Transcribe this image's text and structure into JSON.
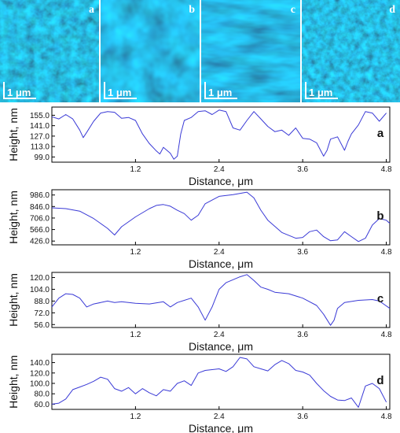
{
  "images": [
    {
      "letter": "a",
      "scale_label": "1 μm"
    },
    {
      "letter": "b",
      "scale_label": "1 μm"
    },
    {
      "letter": "c",
      "scale_label": "1 μm"
    },
    {
      "letter": "d",
      "scale_label": "1 μm"
    }
  ],
  "colors": {
    "line": "#3a3ad6",
    "axis": "#000000",
    "image_base": "#0e6fa0",
    "image_light": "#29c3f0",
    "image_dark": "#031a2a"
  },
  "chart_data": [
    {
      "type": "line",
      "panel_label": "a",
      "xlabel": "Distance, μm",
      "ylabel": "Height, nm",
      "xlim": [
        0,
        4.85
      ],
      "ylim": [
        92,
        166
      ],
      "xticks": [
        "1.2",
        "2.4",
        "3.6",
        "4.8"
      ],
      "xtick_values": [
        1.2,
        2.4,
        3.6,
        4.8
      ],
      "yticks": [
        "155.0",
        "141.0",
        "127.0",
        "113.0",
        "99.0"
      ],
      "ytick_values": [
        155,
        141,
        127,
        113,
        99
      ],
      "series": [
        {
          "x": [
            0,
            0.1,
            0.2,
            0.3,
            0.4,
            0.45,
            0.5,
            0.6,
            0.7,
            0.8,
            0.9,
            1.0,
            1.1,
            1.2,
            1.3,
            1.4,
            1.5,
            1.55,
            1.6,
            1.7,
            1.75,
            1.8,
            1.85,
            1.9,
            2.0,
            2.1,
            2.2,
            2.3,
            2.4,
            2.5,
            2.6,
            2.7,
            2.8,
            2.9,
            3.0,
            3.1,
            3.2,
            3.3,
            3.4,
            3.5,
            3.6,
            3.7,
            3.8,
            3.9,
            3.95,
            4.0,
            4.1,
            4.2,
            4.25,
            4.3,
            4.4,
            4.5,
            4.6,
            4.7,
            4.8
          ],
          "y": [
            153,
            150,
            156,
            150,
            135,
            125,
            132,
            147,
            158,
            160,
            159,
            151,
            152,
            148,
            130,
            117,
            107,
            103,
            112,
            104,
            96,
            100,
            130,
            148,
            152,
            160,
            161,
            156,
            162,
            160,
            138,
            135,
            148,
            160,
            150,
            140,
            133,
            135,
            128,
            138,
            124,
            123,
            118,
            100,
            108,
            123,
            126,
            108,
            120,
            130,
            142,
            160,
            158,
            147,
            158
          ]
        }
      ]
    },
    {
      "type": "line",
      "panel_label": "b",
      "xlabel": "Distance, μm",
      "ylabel": "Height, nm",
      "xlim": [
        0,
        4.85
      ],
      "ylim": [
        380,
        1050
      ],
      "xticks": [
        "1.2",
        "2.4",
        "3.6",
        "4.8"
      ],
      "xtick_values": [
        1.2,
        2.4,
        3.6,
        4.8
      ],
      "yticks": [
        "986.0",
        "846.0",
        "706.0",
        "566.0",
        "426.0"
      ],
      "ytick_values": [
        986,
        846,
        706,
        566,
        426
      ],
      "series": [
        {
          "x": [
            0,
            0.2,
            0.4,
            0.6,
            0.8,
            0.9,
            1.0,
            1.2,
            1.4,
            1.5,
            1.6,
            1.7,
            1.8,
            1.9,
            2.0,
            2.1,
            2.2,
            2.4,
            2.6,
            2.8,
            2.9,
            3.0,
            3.1,
            3.3,
            3.5,
            3.6,
            3.7,
            3.8,
            3.9,
            4.0,
            4.1,
            4.2,
            4.3,
            4.4,
            4.5,
            4.6,
            4.7,
            4.8,
            4.85
          ],
          "y": [
            830,
            820,
            790,
            700,
            580,
            500,
            600,
            720,
            820,
            860,
            870,
            850,
            800,
            760,
            680,
            740,
            880,
            970,
            990,
            1020,
            950,
            800,
            680,
            530,
            460,
            470,
            540,
            560,
            480,
            430,
            440,
            540,
            480,
            420,
            460,
            620,
            700,
            680,
            640
          ]
        }
      ]
    },
    {
      "type": "line",
      "panel_label": "c",
      "xlabel": "Distance, μm",
      "ylabel": "Height, nm",
      "xlim": [
        0,
        4.85
      ],
      "ylim": [
        52,
        127
      ],
      "xticks": [
        "1.2",
        "2.4",
        "3.6",
        "4.8"
      ],
      "xtick_values": [
        1.2,
        2.4,
        3.6,
        4.8
      ],
      "yticks": [
        "120.0",
        "104.0",
        "88.0",
        "72.0",
        "56.0"
      ],
      "ytick_values": [
        120,
        104,
        88,
        72,
        56
      ],
      "series": [
        {
          "x": [
            0,
            0.1,
            0.2,
            0.3,
            0.4,
            0.5,
            0.6,
            0.7,
            0.8,
            0.9,
            1.0,
            1.2,
            1.4,
            1.6,
            1.7,
            1.8,
            2.0,
            2.1,
            2.2,
            2.3,
            2.4,
            2.5,
            2.6,
            2.7,
            2.8,
            2.9,
            3.0,
            3.1,
            3.2,
            3.4,
            3.6,
            3.8,
            3.9,
            4.0,
            4.05,
            4.1,
            4.2,
            4.4,
            4.6,
            4.7,
            4.85
          ],
          "y": [
            80,
            92,
            98,
            97,
            92,
            80,
            84,
            86,
            88,
            86,
            87,
            85,
            84,
            87,
            80,
            86,
            92,
            80,
            62,
            80,
            104,
            113,
            117,
            121,
            124,
            116,
            107,
            104,
            100,
            98,
            92,
            82,
            70,
            55,
            62,
            78,
            86,
            89,
            90,
            88,
            78
          ]
        }
      ]
    },
    {
      "type": "line",
      "panel_label": "d",
      "xlabel": "Distance, μm",
      "ylabel": "Height, nm",
      "xlim": [
        0,
        4.85
      ],
      "ylim": [
        50,
        156
      ],
      "xticks": [
        "1.2",
        "2.4",
        "3.6",
        "4.8"
      ],
      "xtick_values": [
        1.2,
        2.4,
        3.6,
        4.8
      ],
      "yticks": [
        "140.0",
        "120.0",
        "100.0",
        "80.0",
        "60.0"
      ],
      "ytick_values": [
        140,
        120,
        100,
        80,
        60
      ],
      "series": [
        {
          "x": [
            0,
            0.1,
            0.2,
            0.3,
            0.4,
            0.5,
            0.6,
            0.7,
            0.8,
            0.9,
            1.0,
            1.1,
            1.2,
            1.3,
            1.4,
            1.5,
            1.6,
            1.7,
            1.8,
            1.9,
            2.0,
            2.1,
            2.2,
            2.4,
            2.5,
            2.6,
            2.7,
            2.8,
            2.9,
            3.0,
            3.1,
            3.2,
            3.3,
            3.4,
            3.5,
            3.6,
            3.7,
            3.8,
            3.9,
            4.0,
            4.1,
            4.2,
            4.3,
            4.4,
            4.5,
            4.6,
            4.7,
            4.8
          ],
          "y": [
            60,
            62,
            70,
            88,
            93,
            98,
            104,
            112,
            108,
            90,
            85,
            92,
            80,
            90,
            82,
            76,
            88,
            85,
            100,
            105,
            96,
            120,
            125,
            128,
            123,
            132,
            150,
            147,
            132,
            128,
            124,
            136,
            144,
            138,
            125,
            122,
            116,
            100,
            86,
            75,
            68,
            67,
            72,
            54,
            95,
            100,
            90,
            64
          ]
        }
      ]
    }
  ]
}
